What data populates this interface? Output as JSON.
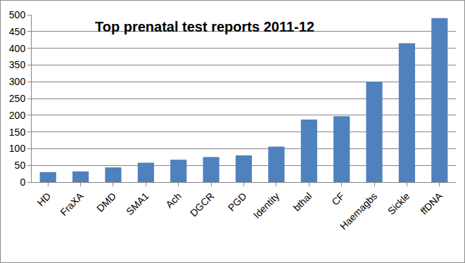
{
  "chart_data": {
    "type": "bar",
    "title": "Top prenatal test reports 2011-12",
    "categories": [
      "HD",
      "FraXA",
      "DMD",
      "SMA1",
      "Ach",
      "DGCR",
      "PGD",
      "Identity",
      "bthal",
      "CF",
      "Haemagbs",
      "Sickle",
      "ffDNA"
    ],
    "values": [
      30,
      32,
      44,
      58,
      67,
      75,
      80,
      106,
      187,
      197,
      300,
      415,
      490
    ],
    "color": "#4f81bd",
    "ylim": [
      0,
      500
    ],
    "yticks": [
      0,
      50,
      100,
      150,
      200,
      250,
      300,
      350,
      400,
      450,
      500
    ],
    "grid": true
  }
}
